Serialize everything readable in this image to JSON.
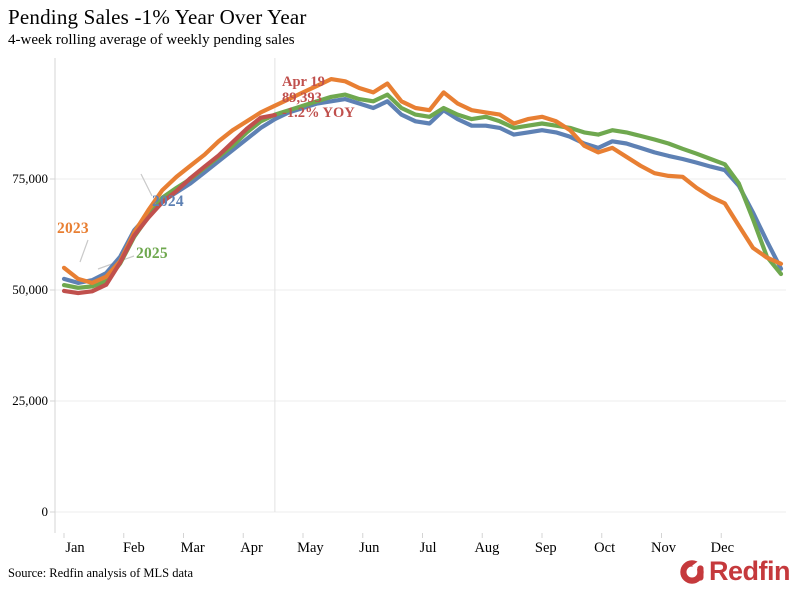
{
  "header": {
    "title": "Pending Sales -1% Year Over Year",
    "subtitle": "4-week rolling average of weekly pending sales"
  },
  "source": "Source: Redfin analysis of MLS data",
  "logo": {
    "text": "Redfin",
    "color": "#C5393C",
    "mark": "redfin-door-ring"
  },
  "colors": {
    "grid": "#ededed",
    "axis": "#d4d4d4",
    "marker_line": "#e2e2e2",
    "leader": "#c9c9c9"
  },
  "chart_data": {
    "type": "line",
    "title": "Pending Sales -1% Year Over Year",
    "subtitle": "4-week rolling average of weekly pending sales",
    "xlabel": "",
    "ylabel": "",
    "ylim": [
      0,
      100000
    ],
    "grid": true,
    "legend_position": "inline-labels",
    "x_unit": "week-of-year (4-week rolling average, weekly points)",
    "months": [
      "Jan",
      "Feb",
      "Mar",
      "Apr",
      "May",
      "Jun",
      "Jul",
      "Aug",
      "Sep",
      "Oct",
      "Nov",
      "Dec"
    ],
    "yticks": [
      0,
      25000,
      50000,
      75000
    ],
    "ytick_labels": [
      "0",
      "25,000",
      "50,000",
      "75,000"
    ],
    "series": [
      {
        "name": "2024",
        "color": "#5E81B4",
        "values": [
          52500,
          51600,
          52200,
          53800,
          57500,
          63500,
          67000,
          70000,
          72000,
          74000,
          76500,
          79000,
          81500,
          84000,
          86500,
          88500,
          90000,
          91000,
          92000,
          92500,
          93000,
          92000,
          91000,
          92500,
          89500,
          88000,
          87500,
          90500,
          88500,
          87000,
          87000,
          86500,
          85000,
          85500,
          86000,
          85500,
          84500,
          83000,
          82000,
          83500,
          83000,
          82000,
          81000,
          80200,
          79500,
          78700,
          77800,
          77000,
          73500,
          67500,
          61000,
          54800
        ]
      },
      {
        "name": "2025",
        "color": "#6FA84F",
        "values": [
          51100,
          50500,
          50800,
          52000,
          56000,
          62000,
          66500,
          70800,
          73000,
          75000,
          77500,
          80000,
          82500,
          85500,
          88000,
          89500,
          90500,
          91500,
          92500,
          93500,
          94000,
          93000,
          92500,
          94000,
          91000,
          89500,
          89000,
          91000,
          89500,
          88500,
          89000,
          88000,
          86500,
          87000,
          87500,
          87000,
          86500,
          85500,
          85000,
          86000,
          85500,
          84700,
          83900,
          83000,
          81800,
          80700,
          79500,
          78300,
          74000,
          66000,
          57500,
          53600
        ]
      },
      {
        "name": "2023",
        "color": "#E87F33",
        "values": [
          55000,
          52500,
          51600,
          53000,
          56500,
          63000,
          68000,
          72500,
          75500,
          78000,
          80500,
          83500,
          86000,
          88000,
          90000,
          91500,
          93000,
          94500,
          96000,
          97500,
          97000,
          95500,
          94500,
          96500,
          92500,
          91000,
          90500,
          94500,
          92000,
          90500,
          90000,
          89500,
          87500,
          88500,
          89000,
          88000,
          86000,
          82500,
          81000,
          82000,
          80000,
          78000,
          76300,
          75700,
          75500,
          73000,
          71000,
          69500,
          64500,
          59500,
          57300,
          55900
        ]
      },
      {
        "name": "current-year",
        "color": "#C0504D",
        "values": [
          49800,
          49300,
          49700,
          51200,
          56200,
          62300,
          66300,
          69800,
          72300,
          75200,
          77800,
          80300,
          83300,
          86300,
          88800,
          89393
        ]
      }
    ],
    "year_labels": [
      {
        "text": "2023",
        "color": "#E87F33"
      },
      {
        "text": "2024",
        "color": "#5E81B4"
      },
      {
        "text": "2025",
        "color": "#6FA84F"
      }
    ],
    "annotation": {
      "color": "#C0504D",
      "lines": [
        "Apr 19",
        "89,393",
        "-1.2% YOY"
      ],
      "date": "Apr 19",
      "value": 89393,
      "yoy_change": "-1.2% YOY"
    }
  }
}
